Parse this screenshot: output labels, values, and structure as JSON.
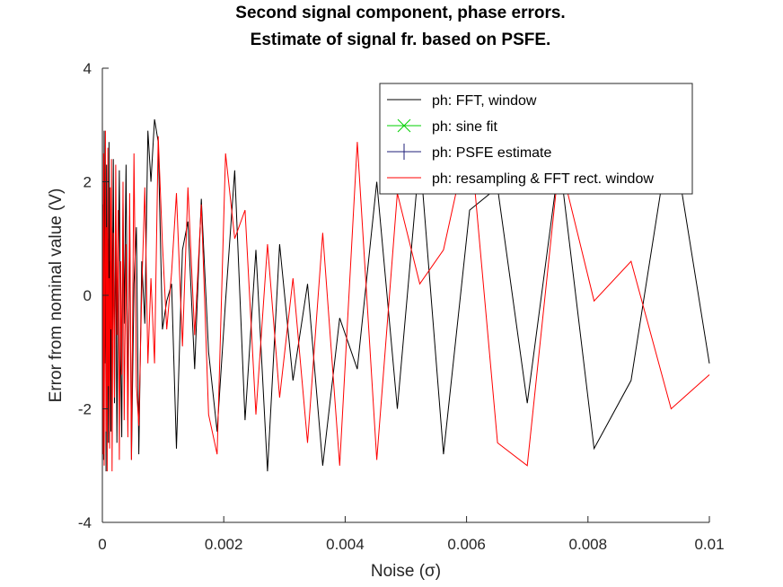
{
  "chart_data": {
    "type": "line",
    "title": [
      "Second signal component, phase errors.",
      "Estimate of signal fr. based on PSFE."
    ],
    "xlabel": "Noise (σ)",
    "ylabel": "Error from nominal value (V)",
    "xlim": [
      0,
      0.01
    ],
    "ylim": [
      -4,
      4
    ],
    "xticks": [
      0,
      0.002,
      0.004,
      0.006,
      0.008,
      0.01
    ],
    "xtick_labels": [
      "0",
      "0.002",
      "0.004",
      "0.006",
      "0.008",
      "0.01"
    ],
    "yticks": [
      -4,
      -2,
      0,
      2,
      4
    ],
    "ytick_labels": [
      "-4",
      "-2",
      "0",
      "2",
      "4"
    ],
    "grid": false,
    "legend_position": "top-right",
    "series": [
      {
        "name": "ph: FFT, window",
        "color": "#000000",
        "marker": "none",
        "x": [
          0.0,
          1e-05,
          2e-05,
          3e-05,
          4e-05,
          5e-05,
          6e-05,
          7e-05,
          8e-05,
          9e-05,
          0.0001,
          0.00011,
          0.00012,
          0.00013,
          0.00014,
          0.00015,
          0.00016,
          0.00018,
          0.0002,
          0.00022,
          0.00024,
          0.00026,
          0.00028,
          0.0003,
          0.00032,
          0.00034,
          0.00036,
          0.00039,
          0.00042,
          0.00045,
          0.00048,
          0.00052,
          0.00056,
          0.0006,
          0.00065,
          0.0007,
          0.00075,
          0.0008,
          0.00086,
          0.00092,
          0.00099,
          0.00106,
          0.00114,
          0.00122,
          0.00132,
          0.00141,
          0.00152,
          0.00163,
          0.00175,
          0.00189,
          0.00203,
          0.00218,
          0.00235,
          0.00253,
          0.00272,
          0.00292,
          0.00314,
          0.00338,
          0.00363,
          0.00391,
          0.0042,
          0.00452,
          0.00486,
          0.00523,
          0.00562,
          0.00605,
          0.00651,
          0.007,
          0.00753,
          0.0081,
          0.00871,
          0.00937,
          0.01
        ],
        "y": [
          -3.0,
          1.6,
          -2.9,
          2.9,
          -1.2,
          1.7,
          -3.1,
          2.3,
          -1.8,
          1.0,
          -2.6,
          2.7,
          -1.5,
          0.6,
          -2.4,
          1.2,
          -0.8,
          2.4,
          -1.9,
          1.4,
          -2.6,
          0.2,
          2.2,
          -1.1,
          -2.5,
          1.7,
          -0.5,
          2.3,
          -2.2,
          1.4,
          -2.9,
          0.2,
          1.2,
          -2.8,
          0.6,
          -0.5,
          2.9,
          2.0,
          3.1,
          2.7,
          -0.6,
          -0.1,
          0.2,
          -2.7,
          0.8,
          1.3,
          -1.3,
          1.7,
          -1.0,
          -2.4,
          -0.1,
          2.2,
          -2.2,
          0.8,
          -3.1,
          0.9,
          -1.5,
          0.2,
          -3.0,
          -0.4,
          -1.3,
          2.0,
          -2.0,
          2.5,
          -2.8,
          1.5,
          1.9,
          -1.9,
          2.4,
          -2.7,
          -1.5,
          3.0,
          -1.2
        ]
      },
      {
        "name": "ph: sine fit",
        "color": "#00d000",
        "marker": "x",
        "x": [],
        "y": []
      },
      {
        "name": "ph: PSFE estimate",
        "color": "#1f1f7a",
        "marker": "+",
        "x": [],
        "y": []
      },
      {
        "name": "ph: resampling & FFT rect. window",
        "color": "#ff0000",
        "marker": "none",
        "x": [
          0.0,
          1e-05,
          2e-05,
          3e-05,
          4e-05,
          5e-05,
          6e-05,
          7e-05,
          8e-05,
          9e-05,
          0.0001,
          0.00011,
          0.00012,
          0.00013,
          0.00014,
          0.00015,
          0.00016,
          0.00018,
          0.0002,
          0.00022,
          0.00024,
          0.00026,
          0.00028,
          0.0003,
          0.00032,
          0.00034,
          0.00036,
          0.00039,
          0.00042,
          0.00045,
          0.00048,
          0.00052,
          0.00056,
          0.0006,
          0.00065,
          0.0007,
          0.00075,
          0.0008,
          0.00086,
          0.00092,
          0.00099,
          0.00106,
          0.00114,
          0.00122,
          0.00132,
          0.00141,
          0.00152,
          0.00163,
          0.00175,
          0.00189,
          0.00203,
          0.00218,
          0.00235,
          0.00253,
          0.00272,
          0.00292,
          0.00314,
          0.00338,
          0.00363,
          0.00391,
          0.0042,
          0.00452,
          0.00486,
          0.00523,
          0.00562,
          0.00605,
          0.00651,
          0.007,
          0.00753,
          0.0081,
          0.00871,
          0.00937,
          0.01
        ],
        "y": [
          3.1,
          -2.8,
          2.5,
          -3.0,
          0.5,
          2.9,
          -2.4,
          1.2,
          -3.1,
          2.6,
          -1.6,
          0.3,
          -2.7,
          1.9,
          -0.6,
          2.4,
          -3.1,
          1.1,
          -1.8,
          2.3,
          -0.7,
          1.5,
          -2.9,
          0.6,
          -1.4,
          2.0,
          -2.2,
          0.9,
          -2.5,
          1.8,
          -2.9,
          2.5,
          -1.6,
          -2.3,
          0.1,
          1.9,
          -1.2,
          0.3,
          -1.2,
          2.8,
          0.9,
          -0.6,
          0.4,
          1.8,
          -0.9,
          1.9,
          -0.7,
          1.6,
          -2.1,
          -2.8,
          2.5,
          1.0,
          1.5,
          -2.1,
          0.9,
          -1.8,
          0.3,
          -2.6,
          1.1,
          -3.0,
          2.7,
          -2.9,
          1.8,
          0.2,
          0.8,
          2.9,
          -2.6,
          -3.0,
          2.4,
          -0.1,
          0.6,
          -2.0,
          -1.4
        ]
      }
    ]
  }
}
